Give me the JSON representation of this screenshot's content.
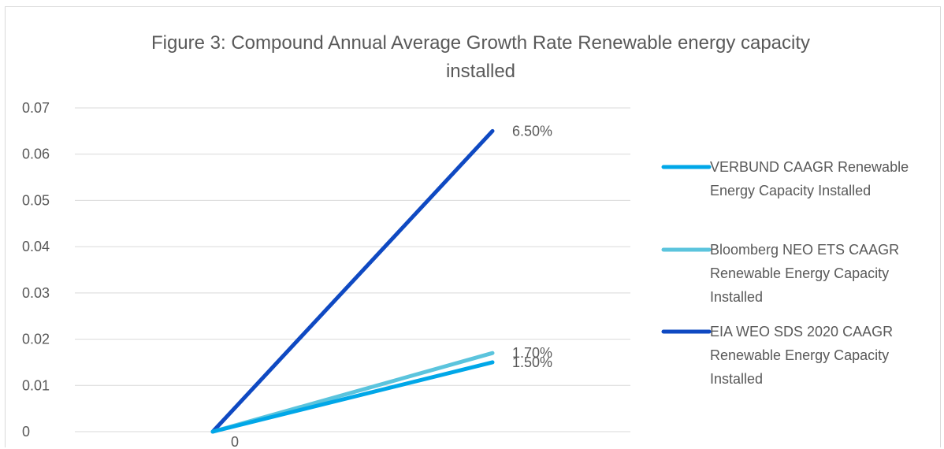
{
  "chart_data": {
    "type": "line",
    "title_lines": [
      "Figure 3: Compound Annual Average Growth Rate Renewable energy capacity",
      "installed"
    ],
    "title": "Figure 3: Compound Annual Average Growth Rate Renewable energy capacity installed",
    "xlabel": "",
    "ylabel": "",
    "x_points": 2,
    "ylim": [
      0,
      0.07
    ],
    "y_ticks": [
      "0",
      "0.01",
      "0.02",
      "0.03",
      "0.04",
      "0.05",
      "0.06",
      "0.07"
    ],
    "y_tick_values": [
      0,
      0.01,
      0.02,
      0.03,
      0.04,
      0.05,
      0.06,
      0.07
    ],
    "grid": true,
    "legend_position": "right",
    "origin_label": "0",
    "series": [
      {
        "name": "VERBUND CAAGR Renewable Energy Capacity Installed",
        "name_lines": [
          "VERBUND CAAGR Renewable",
          "Energy Capacity Installed"
        ],
        "values": [
          0,
          0.015
        ],
        "end_label": "1.50%",
        "color": "#00a7e8"
      },
      {
        "name": "Bloomberg NEO ETS CAAGR Renewable Energy Capacity Installed",
        "name_lines": [
          "Bloomberg NEO ETS CAAGR",
          "Renewable Energy Capacity",
          "Installed"
        ],
        "values": [
          0,
          0.017
        ],
        "end_label": "1.70%",
        "color": "#5bc4dd"
      },
      {
        "name": "EIA WEO SDS 2020 CAAGR Renewable Energy Capacity Installed",
        "name_lines": [
          "EIA WEO SDS 2020 CAAGR",
          "Renewable Energy Capacity",
          "Installed"
        ],
        "values": [
          0,
          0.065
        ],
        "end_label": "6.50%",
        "color": "#0f49c2"
      }
    ]
  }
}
